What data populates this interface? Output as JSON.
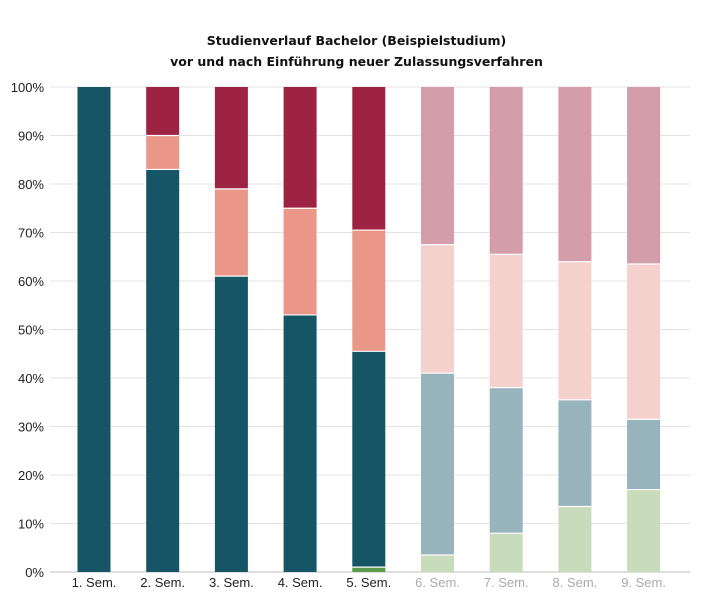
{
  "chart_data": {
    "type": "bar",
    "stacked": true,
    "title": "Studienverlauf Bachelor (Beispielstudium)",
    "subtitle": "vor und nach Einführung neuer Zulassungsverfahren",
    "xlabel": "",
    "ylabel": "",
    "ylim": [
      0,
      100
    ],
    "y_ticks": [
      "0%",
      "10%",
      "20%",
      "30%",
      "40%",
      "50%",
      "60%",
      "70%",
      "80%",
      "90%",
      "100%"
    ],
    "grid": true,
    "legend": "none",
    "categories": [
      "1. Sem.",
      "2. Sem.",
      "3. Sem.",
      "4. Sem.",
      "5. Sem.",
      "6. Sem.",
      "7. Sem.",
      "8. Sem.",
      "9. Sem."
    ],
    "category_label_colors": [
      "#222222",
      "#222222",
      "#222222",
      "#222222",
      "#222222",
      "#aaaaaa",
      "#aaaaaa",
      "#aaaaaa",
      "#aaaaaa"
    ],
    "series": [
      {
        "colors": [
          "#c8dcbc",
          "#c8dcbc",
          "#c8dcbc",
          "#c8dcbc",
          "#5b9a4a",
          "#c8dcbc",
          "#c8dcbc",
          "#c8dcbc",
          "#c8dcbc"
        ],
        "values": [
          0,
          0,
          0,
          0,
          1,
          3.5,
          8,
          13.5,
          17
        ]
      },
      {
        "colors": [
          "#165565",
          "#165565",
          "#165565",
          "#165565",
          "#165565",
          "#97b3bb",
          "#97b3bb",
          "#97b3bb",
          "#97b3bb"
        ],
        "values": [
          100,
          83,
          61,
          53,
          44.5,
          37.5,
          30,
          22,
          14.5
        ]
      },
      {
        "colors": [
          "#ea9688",
          "#ea9688",
          "#ea9688",
          "#ea9688",
          "#ea9688",
          "#f5d1cd",
          "#f5d1cd",
          "#f5d1cd",
          "#f5d1cd"
        ],
        "values": [
          0,
          7,
          18,
          22,
          25,
          26.5,
          27.5,
          28.5,
          32
        ]
      },
      {
        "colors": [
          "#9e2242",
          "#9e2242",
          "#9e2242",
          "#9e2242",
          "#9e2242",
          "#d49daa",
          "#d49daa",
          "#d49daa",
          "#d49daa"
        ],
        "values": [
          0,
          10,
          21,
          25,
          29.5,
          32.5,
          34.5,
          36,
          36.5
        ]
      }
    ]
  }
}
